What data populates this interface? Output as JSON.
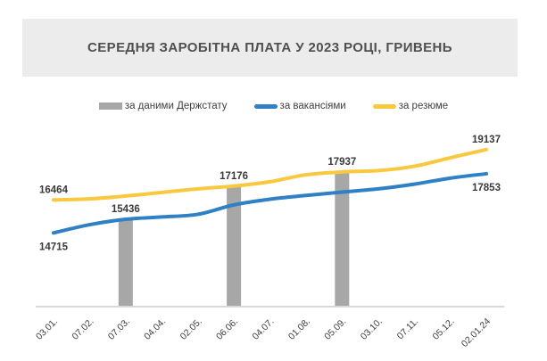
{
  "title": "СЕРЕДНЯ ЗАРОБІТНА ПЛАТА У 2023 РОЦІ, ГРИВЕНЬ",
  "colors": {
    "banner_bg": "#ececec",
    "title_text": "#4f4f4f",
    "label_text": "#3a3a3a",
    "axis_label_text": "#3e3e3e",
    "statistics_bar": "#a7a7a7",
    "vacancies_line": "#2f80c4",
    "resumes_line": "#f8c83e",
    "axis_line": "#d7d7d7"
  },
  "legend": {
    "items": [
      {
        "label": "за даними Держстату",
        "type": "bar",
        "color_key": "statistics_bar"
      },
      {
        "label": "за вакансіями",
        "type": "line",
        "color_key": "vacancies_line"
      },
      {
        "label": "за резюме",
        "type": "line",
        "color_key": "resumes_line"
      }
    ]
  },
  "chart_data": {
    "type": "combo-bar-line",
    "title": "СЕРЕДНЯ ЗАРОБІТНА ПЛАТА У 2023 РОЦІ, ГРИВЕНЬ",
    "categories": [
      "03.01.",
      "07.02.",
      "07.03.",
      "04.04.",
      "02.05.",
      "06.06.",
      "04.07.",
      "01.08.",
      "05.09.",
      "03.10.",
      "07.11.",
      "05.12.",
      "02.01.24"
    ],
    "series": [
      {
        "name": "за даними Держстату",
        "type": "bar",
        "color_key": "statistics_bar",
        "values": [
          null,
          null,
          15436,
          null,
          null,
          17176,
          null,
          null,
          17937,
          null,
          null,
          null,
          null
        ]
      },
      {
        "name": "за вакансіями",
        "type": "line",
        "color_key": "vacancies_line",
        "values": [
          14715,
          15150,
          15436,
          15560,
          15700,
          16200,
          16500,
          16700,
          16880,
          17050,
          17300,
          17620,
          17853
        ]
      },
      {
        "name": "за резюме",
        "type": "line",
        "color_key": "resumes_line",
        "values": [
          16464,
          16520,
          16670,
          16860,
          17050,
          17200,
          17430,
          17800,
          17950,
          18020,
          18250,
          18700,
          19137
        ]
      }
    ],
    "data_labels": [
      {
        "text": "16464",
        "series": 2,
        "index": 0,
        "placement": "above"
      },
      {
        "text": "14715",
        "series": 1,
        "index": 0,
        "placement": "below"
      },
      {
        "text": "15436",
        "series": 0,
        "index": 2,
        "placement": "above"
      },
      {
        "text": "17176",
        "series": 0,
        "index": 5,
        "placement": "above"
      },
      {
        "text": "17937",
        "series": 0,
        "index": 8,
        "placement": "above"
      },
      {
        "text": "19137",
        "series": 2,
        "index": 12,
        "placement": "above"
      },
      {
        "text": "17853",
        "series": 1,
        "index": 12,
        "placement": "below"
      }
    ],
    "ylim": [
      10800,
      19600
    ],
    "grid": false,
    "y_axis_visible": false,
    "legend_position": "top",
    "x_tick_rotation": -45
  }
}
